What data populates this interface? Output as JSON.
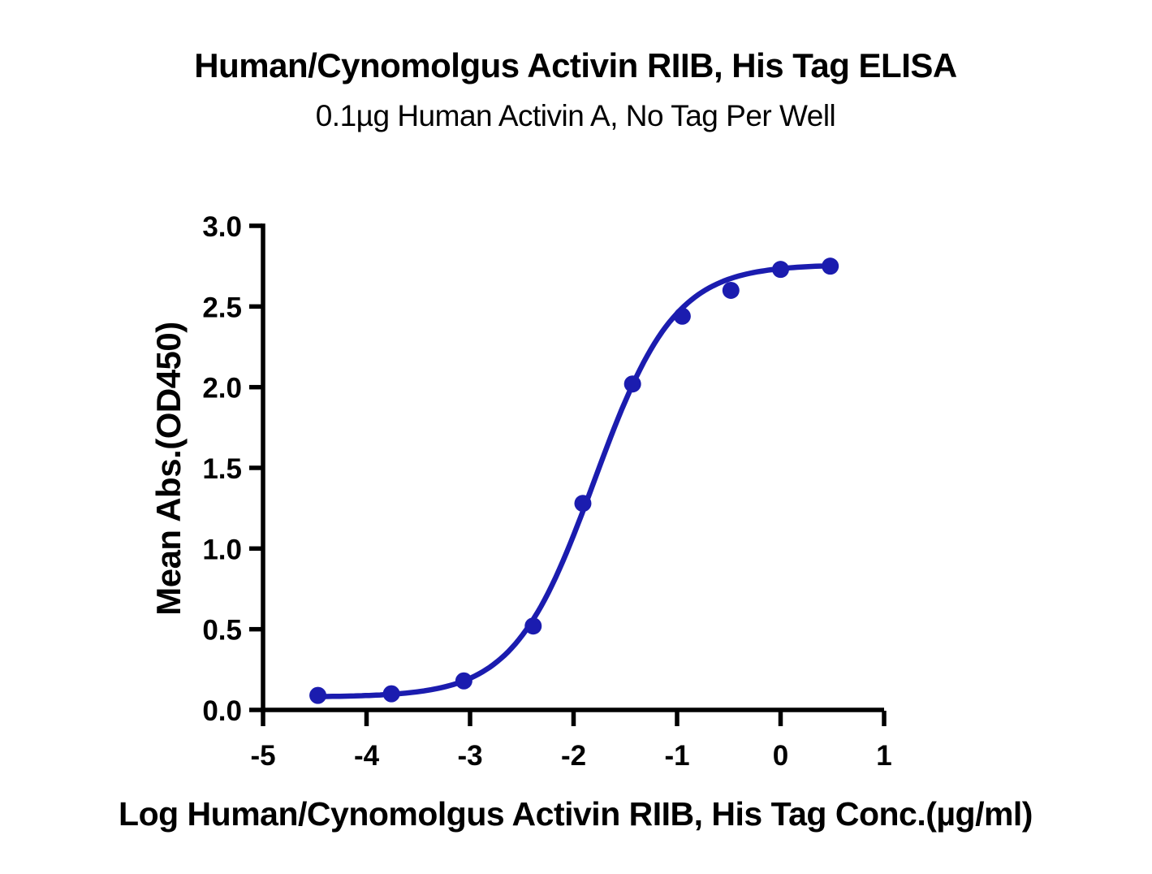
{
  "page": {
    "background": "#ffffff"
  },
  "chart_data": {
    "type": "scatter",
    "title": "Human/Cynomolgus Activin RIIB, His Tag ELISA",
    "subtitle": "0.1µg Human Activin A, No Tag Per Well",
    "xlabel": "Log Human/Cynomolgus Activin RIIB, His Tag Conc.(µg/ml)",
    "ylabel": "Mean Abs.(OD450)",
    "xlim": [
      -5,
      1
    ],
    "ylim": [
      0,
      3
    ],
    "x_tick_values": [
      -5,
      -4,
      -3,
      -2,
      -1,
      0,
      1
    ],
    "x_tick_labels": [
      "-5",
      "-4",
      "-3",
      "-2",
      "-1",
      "0",
      "1"
    ],
    "y_tick_values": [
      0,
      0.5,
      1,
      1.5,
      2,
      2.5,
      3
    ],
    "y_tick_labels": [
      "0.0",
      "0.5",
      "1.0",
      "1.5",
      "2.0",
      "2.5",
      "3.0"
    ],
    "grid": false,
    "legend": "none",
    "axis_color": "#000000",
    "text_color": "#000000",
    "series": [
      {
        "name": "Human/Cynomolgus Activin RIIB, His Tag",
        "color": "#1b1caf",
        "marker": "circle",
        "points": [
          {
            "x": -4.47,
            "y": 0.09
          },
          {
            "x": -3.76,
            "y": 0.1
          },
          {
            "x": -3.06,
            "y": 0.18
          },
          {
            "x": -2.39,
            "y": 0.52
          },
          {
            "x": -1.91,
            "y": 1.28
          },
          {
            "x": -1.43,
            "y": 2.02
          },
          {
            "x": -0.95,
            "y": 2.44
          },
          {
            "x": -0.48,
            "y": 2.6
          },
          {
            "x": 0.0,
            "y": 2.73
          },
          {
            "x": 0.48,
            "y": 2.75
          }
        ],
        "fit_curve": {
          "model": "4PL sigmoid",
          "bottom": 0.08,
          "top": 2.76,
          "log_ec50": -1.8,
          "hill_slope": 1.12,
          "x_start": -4.47,
          "x_end": 0.48
        }
      }
    ]
  }
}
